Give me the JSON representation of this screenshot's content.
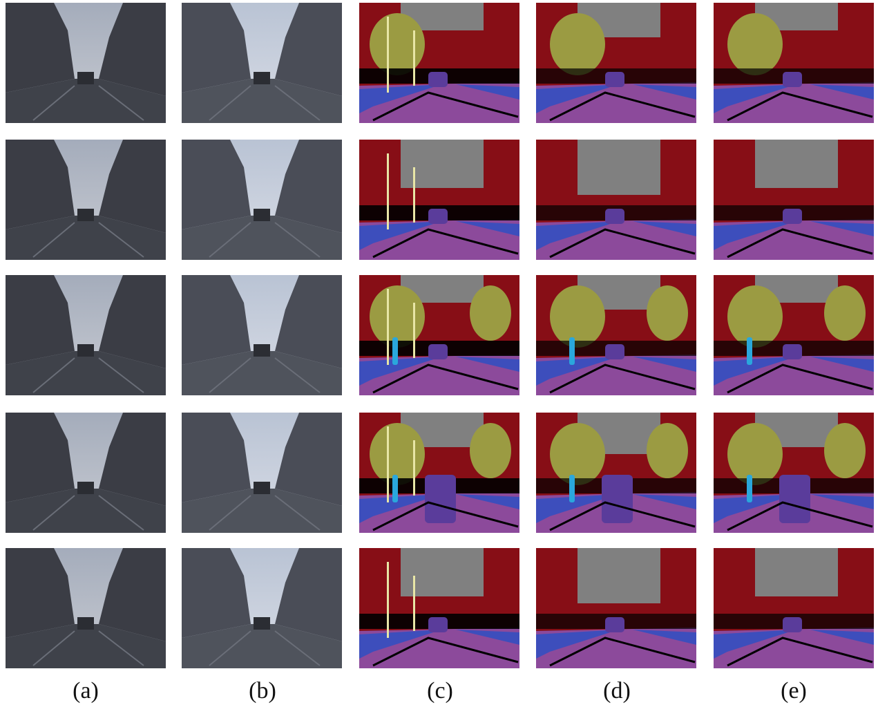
{
  "figure": {
    "column_labels": [
      "(a)",
      "(b)",
      "(c)",
      "(d)",
      "(e)"
    ],
    "rows": 5
  },
  "palette": {
    "sky": "#808080",
    "building": "#870e16",
    "tree": "#9b9b42",
    "road": "#8c4a9b",
    "sidewalk": "#3d4ebc",
    "car": "#5a3c9b",
    "pole": "#e8e6a6",
    "pedestrian": "#2aa7dc",
    "void": "#000000",
    "sign": "#c8829b"
  }
}
